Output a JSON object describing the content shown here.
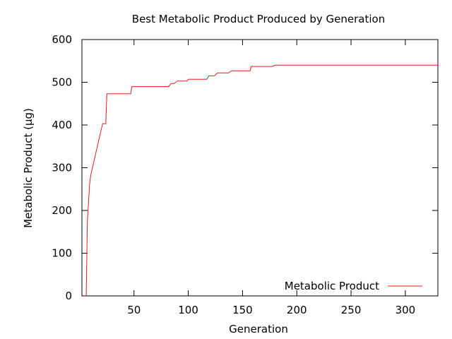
{
  "chart_data": {
    "type": "line",
    "title": "Best Metabolic Product Produced by Generation",
    "xlabel": "Generation",
    "ylabel": "Metabolic Product (µg)",
    "xlim": [
      2,
      330
    ],
    "ylim": [
      0,
      600
    ],
    "x_ticks": [
      50,
      100,
      150,
      200,
      250,
      300
    ],
    "y_ticks": [
      0,
      100,
      200,
      300,
      400,
      500,
      600
    ],
    "grid": false,
    "legend_position": "bottom-right",
    "step": true,
    "series": [
      {
        "name": "Metabolic Product",
        "color": "#e41a1c",
        "x": [
          6,
          7,
          9,
          10,
          21,
          24,
          25,
          47,
          48,
          82,
          84,
          87,
          90,
          99,
          100,
          117,
          119,
          124,
          127,
          137,
          140,
          157,
          158,
          177,
          180,
          330
        ],
        "values": [
          0,
          173,
          260,
          281,
          403,
          403,
          473,
          473,
          490,
          490,
          497,
          497,
          503,
          503,
          507,
          507,
          515,
          515,
          522,
          522,
          527,
          527,
          537,
          537,
          540,
          540
        ]
      }
    ]
  }
}
